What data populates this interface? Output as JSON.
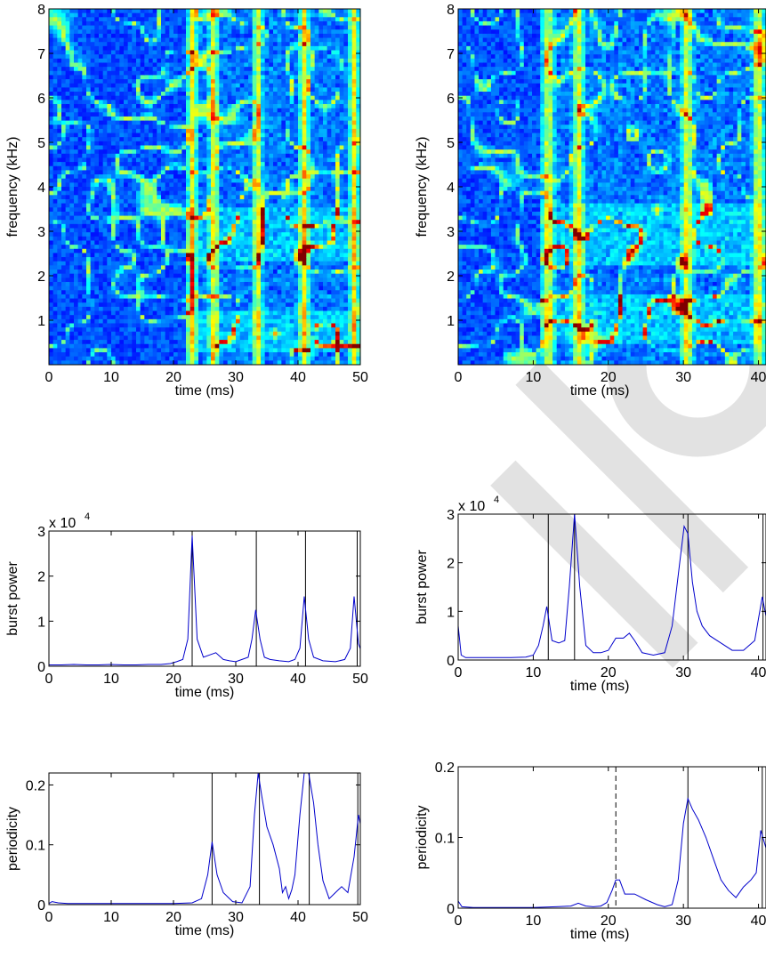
{
  "chart_data": [
    {
      "type": "heatmap",
      "panel": "top-left",
      "xlabel": "time (ms)",
      "ylabel": "frequency (kHz)",
      "xlim": [
        0,
        50
      ],
      "ylim": [
        0,
        8
      ],
      "xticks": [
        0,
        10,
        20,
        30,
        40,
        50
      ],
      "yticks": [
        1,
        2,
        3,
        4,
        5,
        6,
        7,
        8
      ],
      "colormap": "jet",
      "burst_times": [
        23,
        26.5,
        33.5,
        41,
        49
      ],
      "hot_bands": [
        [
          0.3,
          1.2
        ],
        [
          2.3,
          3.5
        ]
      ]
    },
    {
      "type": "heatmap",
      "panel": "top-right",
      "xlabel": "time (ms)",
      "ylabel": "frequency (kHz)",
      "xlim": [
        0,
        41
      ],
      "ylim": [
        0,
        8
      ],
      "xticks": [
        0,
        10,
        20,
        30,
        40
      ],
      "yticks": [
        1,
        2,
        3,
        4,
        5,
        6,
        7,
        8
      ],
      "colormap": "jet",
      "burst_times": [
        12,
        16,
        30.5,
        40
      ],
      "hot_bands": [
        [
          0.5,
          1.6
        ],
        [
          2.2,
          3.6
        ]
      ]
    },
    {
      "type": "line",
      "panel": "middle-left",
      "xlabel": "time (ms)",
      "ylabel": "burst power",
      "exponent_label": "x 10",
      "exponent_power": "4",
      "xlim": [
        0,
        50
      ],
      "ylim": [
        0,
        3
      ],
      "xticks": [
        0,
        10,
        20,
        30,
        40,
        50
      ],
      "yticks": [
        0,
        1,
        2,
        3
      ],
      "color": "#0000cc",
      "x": [
        0,
        2,
        4,
        6,
        8,
        10,
        12,
        14,
        16,
        18,
        19.5,
        20.5,
        21.5,
        22.3,
        23,
        23.8,
        24.8,
        25.8,
        26.8,
        28,
        29,
        30,
        31,
        32,
        32.6,
        33.2,
        33.9,
        34.6,
        35.5,
        37,
        38.5,
        39.5,
        40.3,
        41,
        41.7,
        42.5,
        44,
        46,
        47.5,
        48.4,
        49,
        49.7,
        50.5
      ],
      "series": [
        {
          "values": [
            0.03,
            0.03,
            0.04,
            0.03,
            0.03,
            0.04,
            0.03,
            0.03,
            0.04,
            0.04,
            0.06,
            0.1,
            0.15,
            0.6,
            2.9,
            0.6,
            0.2,
            0.25,
            0.3,
            0.15,
            0.12,
            0.1,
            0.15,
            0.2,
            0.6,
            1.25,
            0.6,
            0.2,
            0.15,
            0.12,
            0.1,
            0.15,
            0.4,
            1.55,
            0.6,
            0.2,
            0.12,
            0.1,
            0.15,
            0.4,
            1.55,
            0.5,
            0.2
          ]
        }
      ],
      "markers": [
        {
          "x": 23,
          "style": "solid"
        },
        {
          "x": 33.3,
          "style": "solid"
        },
        {
          "x": 41.2,
          "style": "solid"
        },
        {
          "x": 49.5,
          "style": "solid"
        }
      ]
    },
    {
      "type": "line",
      "panel": "middle-right",
      "xlabel": "time (ms)",
      "ylabel": "burst power",
      "exponent_label": "x 10",
      "exponent_power": "4",
      "xlim": [
        0,
        41
      ],
      "ylim": [
        0,
        3
      ],
      "xticks": [
        0,
        10,
        20,
        30,
        40
      ],
      "yticks": [
        0,
        1,
        2,
        3
      ],
      "color": "#0000cc",
      "x": [
        0,
        0.4,
        1,
        3,
        5,
        7,
        9,
        10,
        10.7,
        11.3,
        11.8,
        12.5,
        13.4,
        14.2,
        14.8,
        15.5,
        16.2,
        17,
        18,
        19,
        20,
        21,
        22,
        22.8,
        23.5,
        24.5,
        26,
        27.5,
        28.5,
        29.5,
        30.1,
        30.6,
        31.2,
        31.8,
        32.5,
        33.5,
        35,
        36.5,
        38,
        39.5,
        40.5,
        41
      ],
      "series": [
        {
          "values": [
            0.7,
            0.1,
            0.05,
            0.05,
            0.05,
            0.05,
            0.06,
            0.1,
            0.3,
            0.7,
            1.1,
            0.4,
            0.35,
            0.4,
            1.5,
            3.0,
            1.5,
            0.3,
            0.15,
            0.15,
            0.2,
            0.45,
            0.45,
            0.55,
            0.4,
            0.15,
            0.1,
            0.15,
            0.7,
            2.0,
            2.75,
            2.6,
            1.6,
            1.0,
            0.7,
            0.5,
            0.35,
            0.2,
            0.2,
            0.4,
            1.3,
            0.9
          ]
        }
      ],
      "markers": [
        {
          "x": 12,
          "style": "solid"
        },
        {
          "x": 15.5,
          "style": "solid"
        },
        {
          "x": 30.6,
          "style": "solid"
        },
        {
          "x": 40.6,
          "style": "solid"
        }
      ]
    },
    {
      "type": "line",
      "panel": "bottom-left",
      "xlabel": "time (ms)",
      "ylabel": "periodicity",
      "xlim": [
        0,
        50
      ],
      "ylim": [
        0,
        0.22
      ],
      "xticks": [
        0,
        10,
        20,
        30,
        40,
        50
      ],
      "yticks": [
        0,
        0.1,
        0.2
      ],
      "color": "#0000cc",
      "x": [
        0,
        0.5,
        1.5,
        3,
        5,
        10,
        15,
        20,
        23,
        24.5,
        25.5,
        26.2,
        27,
        28,
        29.5,
        31,
        32.3,
        33,
        33.6,
        34.2,
        35,
        36,
        37,
        37.5,
        38,
        38.5,
        39,
        39.5,
        40.3,
        41,
        41.7,
        42.5,
        43.2,
        44,
        45,
        46,
        47,
        48,
        49,
        49.7,
        50.3
      ],
      "series": [
        {
          "values": [
            0.002,
            0.005,
            0.003,
            0.002,
            0.002,
            0.002,
            0.002,
            0.002,
            0.003,
            0.01,
            0.05,
            0.105,
            0.05,
            0.02,
            0.005,
            0.003,
            0.03,
            0.15,
            0.22,
            0.18,
            0.13,
            0.1,
            0.06,
            0.02,
            0.03,
            0.01,
            0.025,
            0.05,
            0.15,
            0.22,
            0.22,
            0.17,
            0.1,
            0.04,
            0.01,
            0.02,
            0.03,
            0.02,
            0.08,
            0.15,
            0.12
          ]
        }
      ],
      "markers": [
        {
          "x": 26.2,
          "style": "solid"
        },
        {
          "x": 33.8,
          "style": "solid"
        },
        {
          "x": 41.8,
          "style": "solid"
        },
        {
          "x": 49.6,
          "style": "solid"
        }
      ]
    },
    {
      "type": "line",
      "panel": "bottom-right",
      "xlabel": "time (ms)",
      "ylabel": "periodicity",
      "xlim": [
        0,
        41
      ],
      "ylim": [
        0,
        0.2
      ],
      "xticks": [
        0,
        10,
        20,
        30,
        40
      ],
      "yticks": [
        0,
        0.1,
        0.2
      ],
      "color": "#0000cc",
      "x": [
        0,
        0.5,
        2,
        5,
        10,
        13,
        15,
        16,
        17,
        18,
        19,
        19.8,
        20.5,
        21,
        21.5,
        22.2,
        23.5,
        25,
        26.5,
        27.5,
        28.5,
        29.3,
        30,
        30.6,
        31.2,
        32,
        33,
        34,
        35,
        36,
        37,
        38,
        39,
        39.7,
        40.3,
        41
      ],
      "series": [
        {
          "values": [
            0.01,
            0.002,
            0.001,
            0.001,
            0.001,
            0.002,
            0.003,
            0.007,
            0.003,
            0.002,
            0.003,
            0.008,
            0.025,
            0.04,
            0.04,
            0.02,
            0.02,
            0.012,
            0.005,
            0.002,
            0.005,
            0.04,
            0.12,
            0.155,
            0.14,
            0.125,
            0.1,
            0.07,
            0.04,
            0.025,
            0.015,
            0.03,
            0.04,
            0.05,
            0.11,
            0.085
          ]
        }
      ],
      "markers": [
        {
          "x": 21,
          "style": "dashed"
        },
        {
          "x": 30.6,
          "style": "solid"
        },
        {
          "x": 40.5,
          "style": "solid"
        }
      ]
    }
  ],
  "watermark_color": "#e2e2e2"
}
